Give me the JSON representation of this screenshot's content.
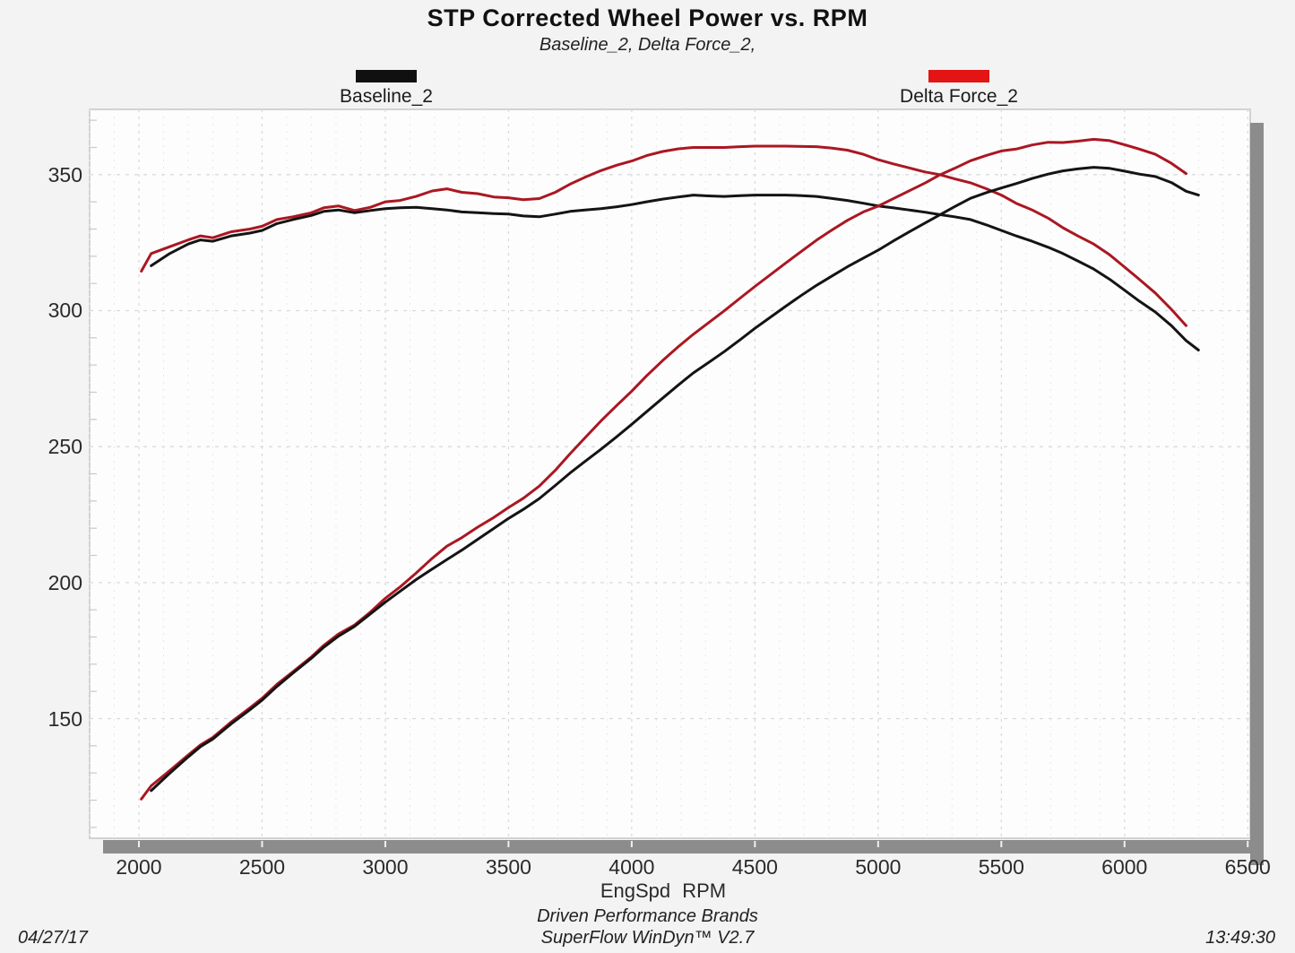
{
  "header": {
    "title": "STP Corrected Wheel Power vs. RPM",
    "subtitle": "Baseline_2, Delta Force_2,"
  },
  "legend": [
    {
      "label": "Baseline_2",
      "color": "#101010"
    },
    {
      "label": "Delta Force_2",
      "color": "#e41414"
    }
  ],
  "footer": {
    "brand": "Driven Performance Brands",
    "software": "SuperFlow WinDyn™ V2.7",
    "date": "04/27/17",
    "time": "13:49:30"
  },
  "colors": {
    "page_bg": "#f3f3f3",
    "plot_bg": "#fdfdfd",
    "plot_border": "#c6c6c6",
    "grid_major": "#d8dbde",
    "grid_minor": "#e4e7e9",
    "axis_tick": "#c9c9c9",
    "shadow_bar": "#8c8c8c",
    "bar_notch": "#f0f0f0",
    "curve_black": "#141414",
    "curve_red": "#aa1722"
  },
  "chart_data": {
    "type": "line",
    "title": "STP Corrected Wheel Power vs. RPM",
    "subtitle": "Baseline_2, Delta Force_2,",
    "xlabel": "EngSpd RPM",
    "ylabel": "",
    "xlim": [
      1800,
      6510
    ],
    "ylim": [
      106,
      374
    ],
    "x_ticks": [
      2000,
      2500,
      3000,
      3500,
      4000,
      4500,
      5000,
      5500,
      6000,
      6500
    ],
    "y_ticks": [
      150,
      200,
      250,
      300,
      350
    ],
    "x_minor_step": 100,
    "y_minor_step": 10,
    "grid": true,
    "legend_position": "top",
    "series": [
      {
        "name": "Delta Force_2 (torque)",
        "color": "#aa1722",
        "points": [
          [
            2010,
            314.5
          ],
          [
            2050,
            321.0
          ],
          [
            2125,
            323.5
          ],
          [
            2200,
            326.0
          ],
          [
            2250,
            327.5
          ],
          [
            2300,
            326.8
          ],
          [
            2375,
            329.0
          ],
          [
            2450,
            330.0
          ],
          [
            2500,
            331.0
          ],
          [
            2560,
            333.5
          ],
          [
            2625,
            334.5
          ],
          [
            2700,
            336.0
          ],
          [
            2750,
            337.8
          ],
          [
            2810,
            338.5
          ],
          [
            2875,
            336.8
          ],
          [
            2940,
            338.0
          ],
          [
            3000,
            340.0
          ],
          [
            3060,
            340.5
          ],
          [
            3125,
            342.0
          ],
          [
            3190,
            344.0
          ],
          [
            3250,
            344.8
          ],
          [
            3310,
            343.5
          ],
          [
            3375,
            343.0
          ],
          [
            3440,
            341.8
          ],
          [
            3500,
            341.5
          ],
          [
            3560,
            340.8
          ],
          [
            3625,
            341.2
          ],
          [
            3690,
            343.5
          ],
          [
            3750,
            346.5
          ],
          [
            3810,
            349.0
          ],
          [
            3875,
            351.5
          ],
          [
            3940,
            353.5
          ],
          [
            4000,
            355.0
          ],
          [
            4060,
            357.0
          ],
          [
            4125,
            358.5
          ],
          [
            4190,
            359.5
          ],
          [
            4250,
            360.0
          ],
          [
            4375,
            360.0
          ],
          [
            4440,
            360.3
          ],
          [
            4500,
            360.5
          ],
          [
            4625,
            360.5
          ],
          [
            4750,
            360.3
          ],
          [
            4810,
            359.8
          ],
          [
            4875,
            359.0
          ],
          [
            4940,
            357.5
          ],
          [
            5000,
            355.5
          ],
          [
            5060,
            354.0
          ],
          [
            5125,
            352.5
          ],
          [
            5190,
            351.0
          ],
          [
            5250,
            350.0
          ],
          [
            5310,
            348.5
          ],
          [
            5375,
            347.0
          ],
          [
            5440,
            344.8
          ],
          [
            5500,
            342.5
          ],
          [
            5560,
            339.5
          ],
          [
            5625,
            337.0
          ],
          [
            5690,
            334.0
          ],
          [
            5750,
            330.5
          ],
          [
            5810,
            327.5
          ],
          [
            5875,
            324.5
          ],
          [
            5940,
            320.5
          ],
          [
            6000,
            316.0
          ],
          [
            6060,
            311.5
          ],
          [
            6125,
            306.5
          ],
          [
            6190,
            300.5
          ],
          [
            6250,
            294.5
          ]
        ]
      },
      {
        "name": "Baseline_2 (torque)",
        "color": "#141414",
        "points": [
          [
            2050,
            316.5
          ],
          [
            2125,
            321.0
          ],
          [
            2200,
            324.5
          ],
          [
            2250,
            326.0
          ],
          [
            2300,
            325.5
          ],
          [
            2375,
            327.5
          ],
          [
            2450,
            328.5
          ],
          [
            2500,
            329.5
          ],
          [
            2560,
            332.0
          ],
          [
            2625,
            333.5
          ],
          [
            2700,
            335.0
          ],
          [
            2750,
            336.5
          ],
          [
            2810,
            337.0
          ],
          [
            2875,
            336.0
          ],
          [
            2940,
            336.8
          ],
          [
            3000,
            337.5
          ],
          [
            3060,
            337.8
          ],
          [
            3125,
            338.0
          ],
          [
            3190,
            337.5
          ],
          [
            3250,
            337.0
          ],
          [
            3310,
            336.3
          ],
          [
            3375,
            336.0
          ],
          [
            3440,
            335.7
          ],
          [
            3500,
            335.5
          ],
          [
            3560,
            334.8
          ],
          [
            3625,
            334.5
          ],
          [
            3690,
            335.5
          ],
          [
            3750,
            336.5
          ],
          [
            3810,
            337.0
          ],
          [
            3875,
            337.5
          ],
          [
            3940,
            338.2
          ],
          [
            4000,
            339.0
          ],
          [
            4060,
            340.0
          ],
          [
            4125,
            341.0
          ],
          [
            4190,
            341.8
          ],
          [
            4250,
            342.5
          ],
          [
            4310,
            342.2
          ],
          [
            4375,
            342.0
          ],
          [
            4440,
            342.3
          ],
          [
            4500,
            342.5
          ],
          [
            4625,
            342.5
          ],
          [
            4690,
            342.3
          ],
          [
            4750,
            342.0
          ],
          [
            4810,
            341.3
          ],
          [
            4875,
            340.5
          ],
          [
            4940,
            339.5
          ],
          [
            5000,
            338.5
          ],
          [
            5060,
            337.8
          ],
          [
            5125,
            337.0
          ],
          [
            5190,
            336.2
          ],
          [
            5250,
            335.3
          ],
          [
            5310,
            334.5
          ],
          [
            5375,
            333.5
          ],
          [
            5440,
            331.5
          ],
          [
            5500,
            329.5
          ],
          [
            5560,
            327.5
          ],
          [
            5625,
            325.5
          ],
          [
            5690,
            323.3
          ],
          [
            5750,
            321.0
          ],
          [
            5810,
            318.3
          ],
          [
            5875,
            315.3
          ],
          [
            5940,
            311.5
          ],
          [
            6000,
            307.5
          ],
          [
            6060,
            303.5
          ],
          [
            6125,
            299.5
          ],
          [
            6190,
            294.5
          ],
          [
            6250,
            289.0
          ],
          [
            6300,
            285.5
          ]
        ]
      },
      {
        "name": "Delta Force_2 (power)",
        "color": "#aa1722",
        "points": [
          [
            2010,
            120.4
          ],
          [
            2050,
            125.3
          ],
          [
            2125,
            130.9
          ],
          [
            2200,
            136.6
          ],
          [
            2250,
            140.3
          ],
          [
            2300,
            143.1
          ],
          [
            2375,
            148.8
          ],
          [
            2450,
            153.9
          ],
          [
            2500,
            157.5
          ],
          [
            2560,
            162.6
          ],
          [
            2625,
            167.2
          ],
          [
            2700,
            172.7
          ],
          [
            2750,
            176.9
          ],
          [
            2810,
            181.1
          ],
          [
            2875,
            184.4
          ],
          [
            2940,
            189.2
          ],
          [
            3000,
            194.2
          ],
          [
            3060,
            198.4
          ],
          [
            3125,
            203.5
          ],
          [
            3190,
            208.9
          ],
          [
            3250,
            213.4
          ],
          [
            3310,
            216.5
          ],
          [
            3375,
            220.4
          ],
          [
            3440,
            223.9
          ],
          [
            3500,
            227.6
          ],
          [
            3560,
            231.0
          ],
          [
            3625,
            235.5
          ],
          [
            3690,
            241.3
          ],
          [
            3750,
            247.4
          ],
          [
            3810,
            253.2
          ],
          [
            3875,
            259.4
          ],
          [
            3940,
            265.2
          ],
          [
            4000,
            270.4
          ],
          [
            4060,
            276.0
          ],
          [
            4125,
            281.6
          ],
          [
            4190,
            286.8
          ],
          [
            4250,
            291.3
          ],
          [
            4375,
            299.9
          ],
          [
            4440,
            304.6
          ],
          [
            4500,
            308.9
          ],
          [
            4625,
            317.5
          ],
          [
            4750,
            325.9
          ],
          [
            4810,
            329.5
          ],
          [
            4875,
            333.2
          ],
          [
            4940,
            336.3
          ],
          [
            5000,
            338.4
          ],
          [
            5060,
            341.1
          ],
          [
            5125,
            344.0
          ],
          [
            5190,
            346.9
          ],
          [
            5250,
            349.9
          ],
          [
            5310,
            352.3
          ],
          [
            5375,
            355.1
          ],
          [
            5440,
            357.1
          ],
          [
            5500,
            358.7
          ],
          [
            5560,
            359.4
          ],
          [
            5625,
            360.9
          ],
          [
            5690,
            361.9
          ],
          [
            5750,
            361.8
          ],
          [
            5810,
            362.3
          ],
          [
            5875,
            363.0
          ],
          [
            5940,
            362.5
          ],
          [
            6000,
            361.0
          ],
          [
            6060,
            359.4
          ],
          [
            6125,
            357.5
          ],
          [
            6190,
            354.2
          ],
          [
            6250,
            350.4
          ]
        ]
      },
      {
        "name": "Baseline_2 (power)",
        "color": "#141414",
        "points": [
          [
            2050,
            123.5
          ],
          [
            2125,
            129.9
          ],
          [
            2200,
            135.9
          ],
          [
            2250,
            139.7
          ],
          [
            2300,
            142.5
          ],
          [
            2375,
            148.1
          ],
          [
            2450,
            153.2
          ],
          [
            2500,
            156.8
          ],
          [
            2560,
            161.8
          ],
          [
            2625,
            166.7
          ],
          [
            2700,
            172.2
          ],
          [
            2750,
            176.2
          ],
          [
            2810,
            180.3
          ],
          [
            2875,
            183.9
          ],
          [
            2940,
            188.5
          ],
          [
            3000,
            192.8
          ],
          [
            3060,
            196.8
          ],
          [
            3125,
            201.1
          ],
          [
            3190,
            205.0
          ],
          [
            3250,
            208.5
          ],
          [
            3310,
            211.9
          ],
          [
            3375,
            215.9
          ],
          [
            3440,
            219.9
          ],
          [
            3500,
            223.6
          ],
          [
            3560,
            226.9
          ],
          [
            3625,
            230.9
          ],
          [
            3690,
            235.7
          ],
          [
            3750,
            240.3
          ],
          [
            3810,
            244.5
          ],
          [
            3875,
            249.0
          ],
          [
            3940,
            253.7
          ],
          [
            4000,
            258.2
          ],
          [
            4060,
            262.8
          ],
          [
            4125,
            267.8
          ],
          [
            4190,
            272.7
          ],
          [
            4250,
            277.1
          ],
          [
            4310,
            280.8
          ],
          [
            4375,
            284.9
          ],
          [
            4440,
            289.3
          ],
          [
            4500,
            293.5
          ],
          [
            4560,
            297.4
          ],
          [
            4625,
            301.6
          ],
          [
            4690,
            305.7
          ],
          [
            4750,
            309.3
          ],
          [
            4810,
            312.6
          ],
          [
            4875,
            316.1
          ],
          [
            4940,
            319.3
          ],
          [
            5000,
            322.2
          ],
          [
            5060,
            325.5
          ],
          [
            5125,
            328.9
          ],
          [
            5190,
            332.2
          ],
          [
            5250,
            335.2
          ],
          [
            5310,
            338.2
          ],
          [
            5375,
            341.3
          ],
          [
            5440,
            343.4
          ],
          [
            5500,
            345.1
          ],
          [
            5560,
            346.7
          ],
          [
            5625,
            348.6
          ],
          [
            5690,
            350.2
          ],
          [
            5750,
            351.4
          ],
          [
            5810,
            352.1
          ],
          [
            5875,
            352.7
          ],
          [
            5940,
            352.3
          ],
          [
            6000,
            351.3
          ],
          [
            6060,
            350.2
          ],
          [
            6125,
            349.3
          ],
          [
            6190,
            347.1
          ],
          [
            6250,
            343.9
          ],
          [
            6300,
            342.5
          ]
        ]
      }
    ]
  }
}
